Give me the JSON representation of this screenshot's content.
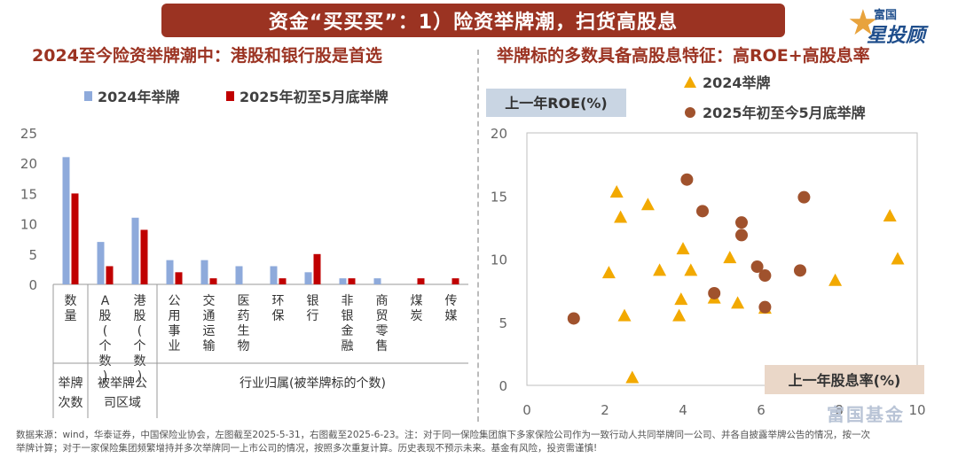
{
  "banner": {
    "title": "资金“买买买”：1）险资举牌潮，扫货高股息"
  },
  "logo": {
    "line1": "富国",
    "line2": "星投顾"
  },
  "left_subtitle": "2024至今险资举牌潮中：港股和银行股是首选",
  "right_subtitle": "举牌标的多数具备高股息特征：高ROE+高股息率",
  "colors": {
    "accent": "#9b3322",
    "series_2024_bar": "#8eaadb",
    "series_2025_bar": "#c00000",
    "tri": "#f2a900",
    "circ": "#a0522d"
  },
  "chart_data": [
    {
      "type": "bar",
      "legend": [
        "2024年举牌",
        "2025年初至5月底举牌"
      ],
      "categories": [
        "数量",
        "A股(个数)",
        "港股(个数)",
        "公用事业",
        "交通运输",
        "医药生物",
        "环保",
        "银行",
        "非银金融",
        "商贸零售",
        "煤炭",
        "传媒"
      ],
      "category_vertical": [
        "数量",
        "A股(个数)",
        "港股(个数)",
        "公用事业",
        "交通运输",
        "医药生物",
        "环保",
        "银行",
        "非银金融",
        "商贸零售",
        "煤炭",
        "传媒"
      ],
      "series": [
        {
          "name": "2024年举牌",
          "values": [
            21,
            7,
            11,
            4,
            4,
            3,
            3,
            2,
            1,
            1,
            0,
            0
          ]
        },
        {
          "name": "2025年初至5月底举牌",
          "values": [
            15,
            3,
            9,
            2,
            1,
            0,
            1,
            5,
            1,
            0,
            1,
            1
          ]
        }
      ],
      "ylim": [
        0,
        25
      ],
      "yticks": [
        "0",
        "5",
        "10",
        "15",
        "20",
        "25"
      ],
      "groups": [
        "举牌次数",
        "被举牌公司区域",
        "行业归属(被举牌标的个数)"
      ],
      "group_split": {
        "0": [
          "举牌",
          "次数"
        ],
        "1": [
          "被举牌公",
          "司区域"
        ]
      },
      "grid": false
    },
    {
      "type": "scatter",
      "xlabel": "上一年股息率(%)",
      "ylabel": "上一年ROE(%)",
      "xlim": [
        0,
        10
      ],
      "ylim": [
        0,
        20
      ],
      "xticks": [
        "0",
        "2",
        "4",
        "6",
        "8",
        "10"
      ],
      "yticks": [
        "0",
        "5",
        "10",
        "15",
        "20"
      ],
      "legend": [
        "2024举牌",
        "2025年初至今5月底举牌"
      ],
      "series": [
        {
          "name": "2024举牌",
          "marker": "triangle",
          "points": [
            [
              2.3,
              15.3
            ],
            [
              2.4,
              13.3
            ],
            [
              3.1,
              14.3
            ],
            [
              2.1,
              8.9
            ],
            [
              2.5,
              5.5
            ],
            [
              2.7,
              0.6
            ],
            [
              3.4,
              9.1
            ],
            [
              3.9,
              5.5
            ],
            [
              3.95,
              6.8
            ],
            [
              4.0,
              10.8
            ],
            [
              4.2,
              9.1
            ],
            [
              4.8,
              6.9
            ],
            [
              5.2,
              10.1
            ],
            [
              5.4,
              6.5
            ],
            [
              6.1,
              6.1
            ],
            [
              7.9,
              8.3
            ],
            [
              9.3,
              13.4
            ],
            [
              9.5,
              10.0
            ]
          ]
        },
        {
          "name": "2025年初至今5月底举牌",
          "marker": "circle",
          "points": [
            [
              1.2,
              5.3
            ],
            [
              4.1,
              16.3
            ],
            [
              4.5,
              13.8
            ],
            [
              4.8,
              7.3
            ],
            [
              5.5,
              12.9
            ],
            [
              5.5,
              11.9
            ],
            [
              5.9,
              9.4
            ],
            [
              6.1,
              8.7
            ],
            [
              6.1,
              6.2
            ],
            [
              7.0,
              9.1
            ],
            [
              7.1,
              14.9
            ]
          ]
        }
      ],
      "grid": false
    }
  ],
  "footer": {
    "line1": "数据来源：wind，华泰证券，中国保险业协会，左图截至2025-5-31，右图截至2025-6-23。注：对于同一保险集团旗下多家保险公司作为一致行动人共同举牌同一公司、并各自披露举牌公告的情况，按一次",
    "line2": "举牌计算；对于一家保险集团频繁增持并多次举牌同一上市公司的情况，按照多次重复计算。历史表现不预示未来。基金有风险，投资需谨慎!"
  },
  "watermark": "富国基金"
}
